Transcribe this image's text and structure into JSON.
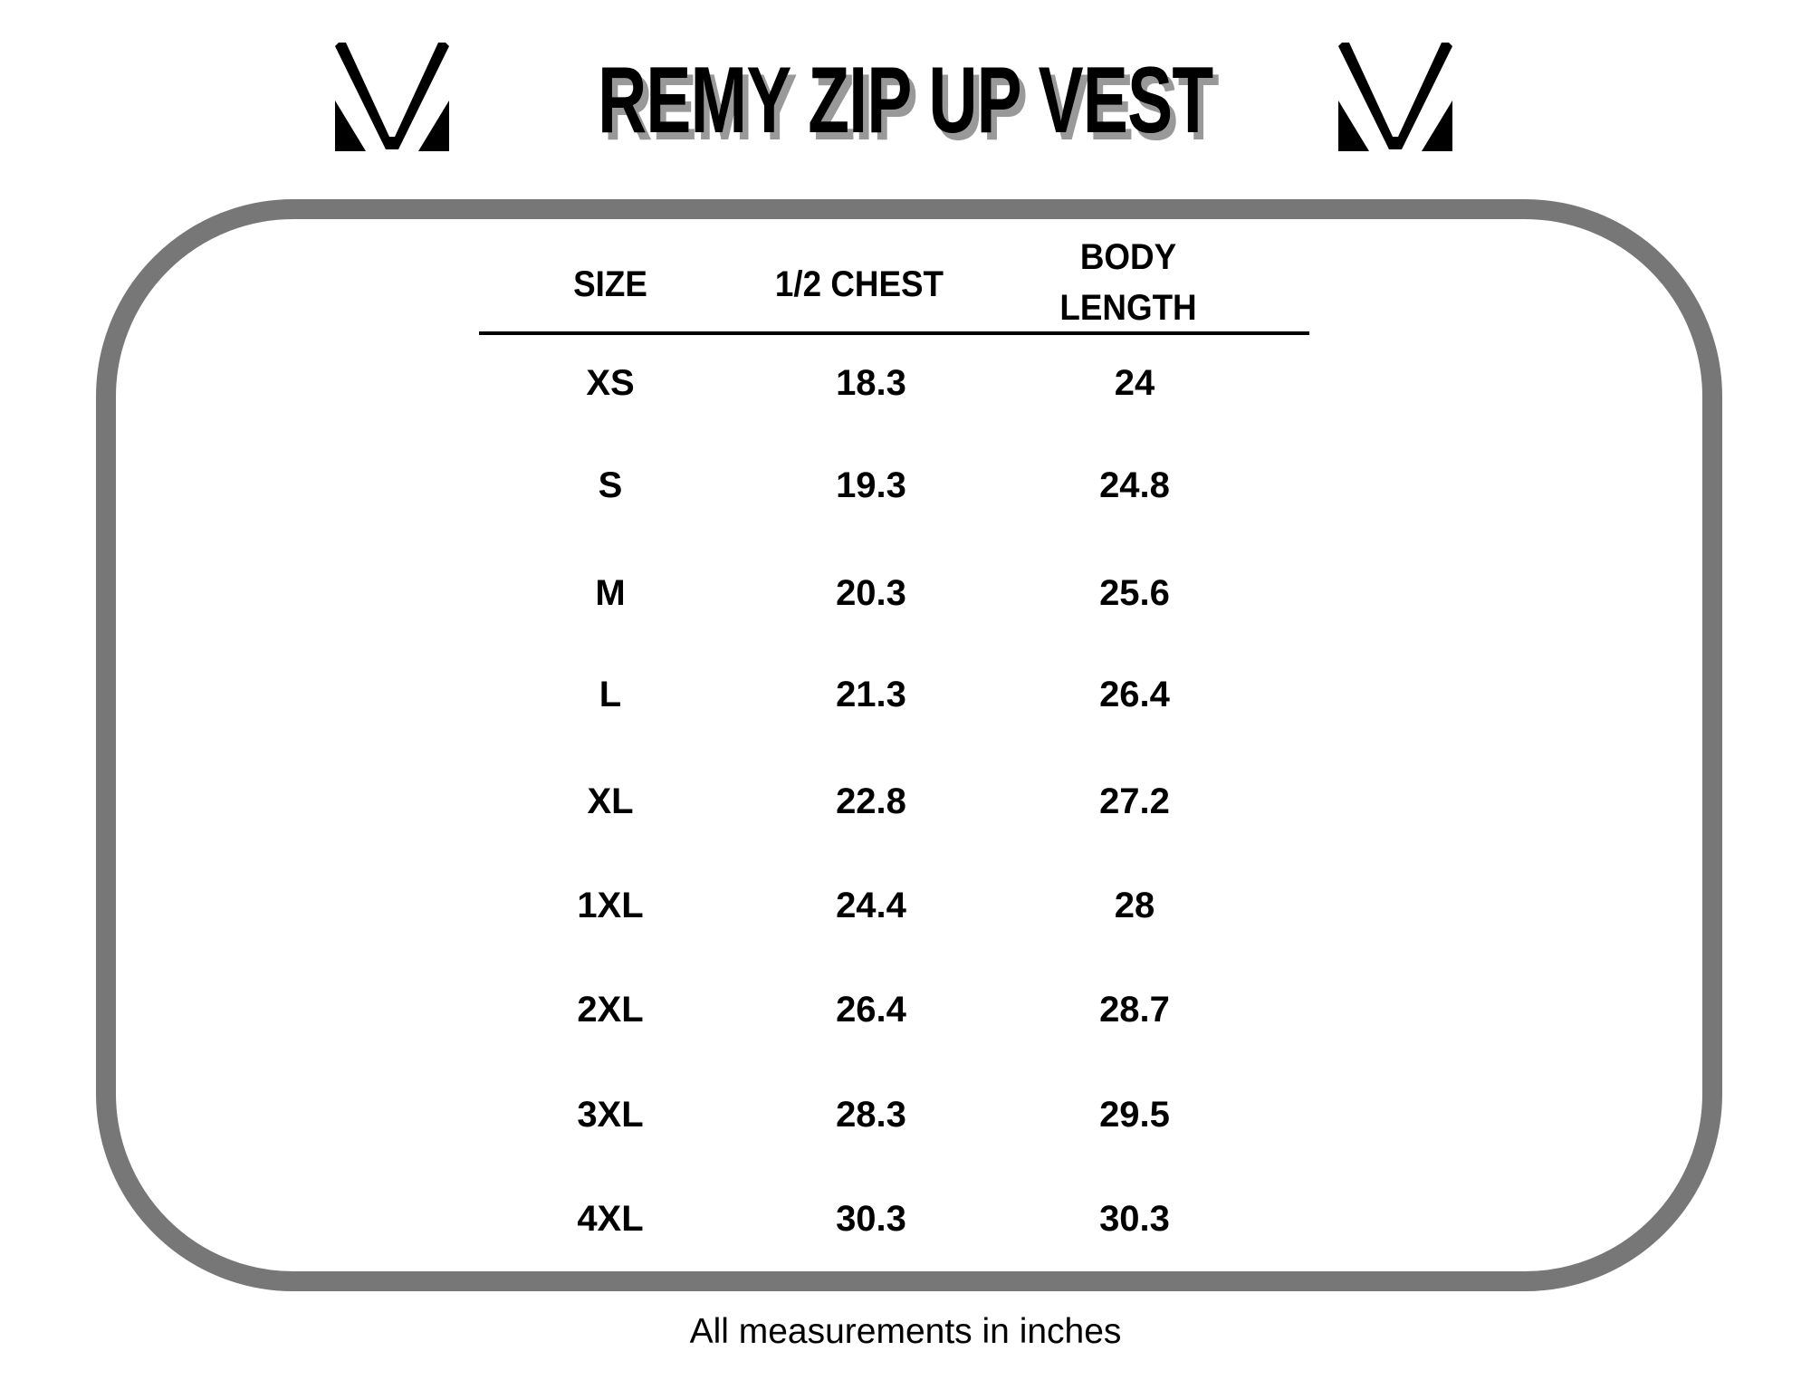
{
  "title": "REMY ZIP UP VEST",
  "logo_icon": "brand-v-logo",
  "colors": {
    "frame": "#777777",
    "title_shadow": "#999999",
    "text": "#000000"
  },
  "table": {
    "headers": {
      "size": "SIZE",
      "chest": "1/2 CHEST",
      "body_line1": "BODY",
      "body_line2": "LENGTH"
    },
    "rows": [
      {
        "size": "XS",
        "chest": "18.3",
        "body": "24"
      },
      {
        "size": "S",
        "chest": "19.3",
        "body": "24.8"
      },
      {
        "size": "M",
        "chest": "20.3",
        "body": "25.6"
      },
      {
        "size": "L",
        "chest": "21.3",
        "body": "26.4"
      },
      {
        "size": "XL",
        "chest": "22.8",
        "body": "27.2"
      },
      {
        "size": "1XL",
        "chest": "24.4",
        "body": "28"
      },
      {
        "size": "2XL",
        "chest": "26.4",
        "body": "28.7"
      },
      {
        "size": "3XL",
        "chest": "28.3",
        "body": "29.5"
      },
      {
        "size": "4XL",
        "chest": "30.3",
        "body": "30.3"
      }
    ]
  },
  "footer": "All measurements in inches"
}
